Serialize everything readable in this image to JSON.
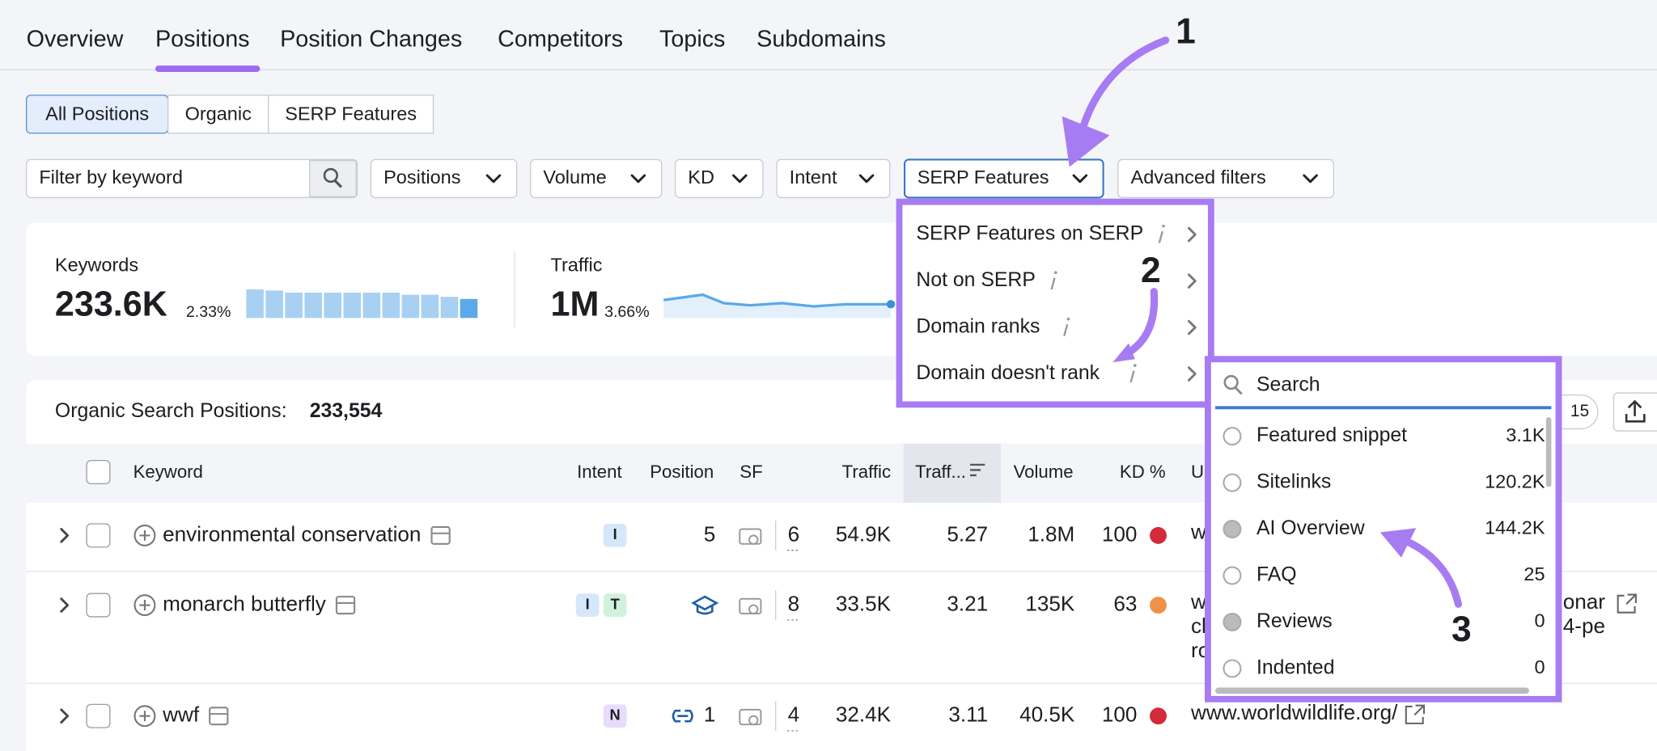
{
  "tabs": [
    "Overview",
    "Positions",
    "Position Changes",
    "Competitors",
    "Topics",
    "Subdomains"
  ],
  "subtabs": [
    "All Positions",
    "Organic",
    "SERP Features"
  ],
  "filters": {
    "keyword_placeholder": "Filter by keyword",
    "dropdowns": [
      "Positions",
      "Volume",
      "KD",
      "Intent",
      "SERP Features",
      "Advanced filters"
    ]
  },
  "summary": {
    "keywords": {
      "label": "Keywords",
      "value": "233.6K",
      "change": "2.33%"
    },
    "traffic": {
      "label": "Traffic",
      "value": "1M",
      "change": "3.66%"
    }
  },
  "serp_menu": {
    "items": [
      "SERP Features on SERP",
      "Not on SERP",
      "Domain ranks",
      "Domain doesn't rank"
    ]
  },
  "serp_submenu": {
    "search_placeholder": "Search",
    "items": [
      {
        "label": "Featured snippet",
        "count": "3.1K"
      },
      {
        "label": "Sitelinks",
        "count": "120.2K"
      },
      {
        "label": "AI Overview",
        "count": "144.2K"
      },
      {
        "label": "FAQ",
        "count": "25"
      },
      {
        "label": "Reviews",
        "count": "0"
      },
      {
        "label": "Indented",
        "count": "0"
      }
    ]
  },
  "table": {
    "title": "Organic Search Positions:",
    "total": "233,554",
    "badge": "15",
    "columns": [
      "Keyword",
      "Intent",
      "Position",
      "SF",
      "Traffic",
      "Traff...",
      "Volume",
      "KD %",
      "U"
    ],
    "rows": [
      {
        "keyword": "environmental conservation",
        "intent": [
          "I"
        ],
        "position": "5",
        "sf": "6",
        "traffic": "54.9K",
        "traffic_pct": "5.27",
        "volume": "1.8M",
        "kd": "100",
        "kd_color": "#d32a3c",
        "url": [
          "w"
        ],
        "url_right": []
      },
      {
        "keyword": "monarch butterfly",
        "intent": [
          "I",
          "T"
        ],
        "position": "",
        "sf": "8",
        "traffic": "33.5K",
        "traffic_pct": "3.21",
        "volume": "135K",
        "kd": "63",
        "kd_color": "#f0914a",
        "url": [
          "w",
          "cl",
          "ro"
        ],
        "url_right": [
          "onar",
          "4-pe"
        ]
      },
      {
        "keyword": "wwf",
        "intent": [
          "N"
        ],
        "position": "1",
        "sf": "4",
        "traffic": "32.4K",
        "traffic_pct": "3.11",
        "volume": "40.5K",
        "kd": "100",
        "kd_color": "#d32a3c",
        "url": [
          "www.worldwildlife.org/"
        ],
        "url_right": []
      }
    ]
  },
  "annotations": [
    "1",
    "2",
    "3"
  ]
}
